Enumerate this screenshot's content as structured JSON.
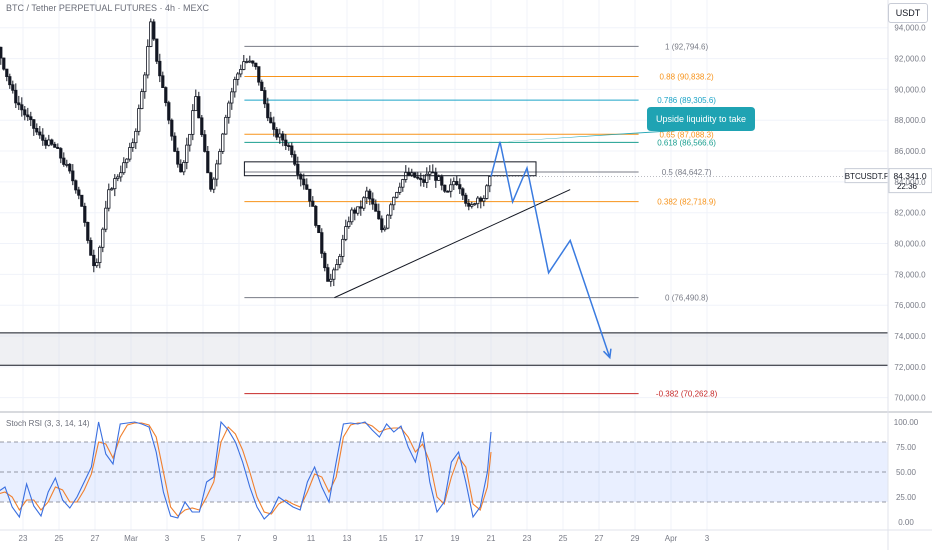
{
  "header": {
    "symbol_title": "BTC / Tether PERPETUAL FUTURES · 4h · MEXC",
    "currency_badge": "USDT"
  },
  "price_label": {
    "symbol": "BTCUSDT.P",
    "price": "84,341.0",
    "countdown": "22:36"
  },
  "annotation": {
    "text": "Upside liquidity to take"
  },
  "fib_levels": [
    {
      "ratio": 1,
      "label": "1 (92,794.6)",
      "price": 92794.6,
      "color": "#787b86"
    },
    {
      "ratio": 0.88,
      "label": "0.88 (90,838.2)",
      "price": 90838.2,
      "color": "#f7931a"
    },
    {
      "ratio": 0.786,
      "label": "0.786 (89,305.6)",
      "price": 89305.6,
      "color": "#1ba3c6"
    },
    {
      "ratio": 0.65,
      "label": "0.65 (87,088.3)",
      "price": 87088.3,
      "color": "#f7931a"
    },
    {
      "ratio": 0.618,
      "label": "0.618 (86,566.6)",
      "price": 86566.6,
      "color": "#1a9e8f"
    },
    {
      "ratio": 0.5,
      "label": "0.5 (84,642.7)",
      "price": 84642.7,
      "color": "#787b86"
    },
    {
      "ratio": 0.382,
      "label": "0.382 (82,718.9)",
      "price": 82718.9,
      "color": "#f7931a"
    },
    {
      "ratio": 0,
      "label": "0 (76,490.8)",
      "price": 76490.8,
      "color": "#787b86"
    },
    {
      "ratio": -0.382,
      "label": "-0.382 (70,262.8)",
      "price": 70262.8,
      "color": "#c62828"
    }
  ],
  "colors": {
    "up": "#131722",
    "down": "#131722",
    "arrow": "#3a7be0",
    "stoch_k": "#3a6fe0",
    "stoch_d": "#f07f2d"
  },
  "chart_data": {
    "type": "candlestick",
    "price_axis": {
      "ylim": [
        69200,
        95800
      ],
      "ticks": [
        70000,
        72000,
        74000,
        76000,
        78000,
        80000,
        82000,
        84000,
        86000,
        88000,
        90000,
        92000,
        94000
      ],
      "tick_labels": [
        "70,000.0",
        "72,000.0",
        "74,000.0",
        "76,000.0",
        "78,000.0",
        "80,000.0",
        "82,000.0",
        "84,000.0",
        "86,000.0",
        "88,000.0",
        "90,000.0",
        "92,000.0",
        "94,000.0"
      ]
    },
    "time_axis": {
      "labels": [
        "15",
        "17",
        "19",
        "21",
        "23",
        "25",
        "27",
        "Mar",
        "3",
        "5",
        "7",
        "9",
        "11",
        "13",
        "15",
        "17",
        "19",
        "21",
        "23",
        "25",
        "27",
        "29",
        "Apr",
        "3"
      ],
      "positions": [
        -8,
        -6,
        -4,
        -2,
        0,
        2,
        4,
        6,
        8,
        10,
        12,
        14,
        16,
        18,
        20,
        22,
        24,
        26,
        28,
        30,
        32,
        34,
        36,
        38
      ]
    },
    "price_path": [
      [
        -9.4,
        95200
      ],
      [
        -8.5,
        96200
      ],
      [
        -7.7,
        95600
      ],
      [
        -7,
        94200
      ],
      [
        -6.3,
        94500
      ],
      [
        -5.3,
        96000
      ],
      [
        -4.5,
        95200
      ],
      [
        -3.6,
        96200
      ],
      [
        -2.7,
        95700
      ],
      [
        -2,
        94500
      ],
      [
        -1.2,
        92000
      ],
      [
        -0.5,
        89500
      ],
      [
        0.2,
        88200
      ],
      [
        1,
        86800
      ],
      [
        1.8,
        86200
      ],
      [
        2.5,
        84800
      ],
      [
        3.2,
        83000
      ],
      [
        3.6,
        80000
      ],
      [
        4,
        78500
      ],
      [
        4.3,
        80000
      ],
      [
        4.8,
        83500
      ],
      [
        5.3,
        84500
      ],
      [
        5.8,
        85500
      ],
      [
        6.2,
        87000
      ],
      [
        6.7,
        90500
      ],
      [
        7.1,
        94200
      ],
      [
        7.5,
        91500
      ],
      [
        8,
        88800
      ],
      [
        8.4,
        86000
      ],
      [
        8.8,
        84800
      ],
      [
        9.2,
        86800
      ],
      [
        9.6,
        89500
      ],
      [
        10,
        86500
      ],
      [
        10.4,
        83500
      ],
      [
        10.8,
        85300
      ],
      [
        11.3,
        88600
      ],
      [
        11.8,
        90700
      ],
      [
        12.3,
        91900
      ],
      [
        12.9,
        91500
      ],
      [
        13.4,
        89200
      ],
      [
        13.9,
        87200
      ],
      [
        14.4,
        86800
      ],
      [
        14.9,
        86100
      ],
      [
        15.3,
        84600
      ],
      [
        15.8,
        83500
      ],
      [
        16.2,
        81800
      ],
      [
        16.6,
        79500
      ],
      [
        17,
        77400
      ],
      [
        17.4,
        78400
      ],
      [
        17.8,
        80300
      ],
      [
        18.2,
        82000
      ],
      [
        18.7,
        82200
      ],
      [
        19.1,
        83300
      ],
      [
        19.6,
        82000
      ],
      [
        20,
        80700
      ],
      [
        20.4,
        82600
      ],
      [
        20.9,
        83800
      ],
      [
        21.3,
        84500
      ],
      [
        21.8,
        84300
      ],
      [
        22.2,
        83900
      ],
      [
        22.6,
        84700
      ],
      [
        23.1,
        84100
      ],
      [
        23.5,
        83000
      ],
      [
        24,
        84200
      ],
      [
        24.4,
        83500
      ],
      [
        24.8,
        82100
      ],
      [
        25.2,
        83000
      ],
      [
        25.6,
        83000
      ],
      [
        26,
        84341
      ]
    ],
    "projection": {
      "series": "arrow",
      "points": [
        [
          26,
          84341
        ],
        [
          26.5,
          86600
        ],
        [
          27.2,
          82700
        ],
        [
          28,
          84900
        ],
        [
          29.2,
          78100
        ],
        [
          30.4,
          80200
        ],
        [
          32.6,
          72600
        ]
      ]
    },
    "trendline": {
      "from": [
        17.3,
        76490.8
      ],
      "to": [
        30.4,
        83500
      ]
    },
    "resistance_box": {
      "x": [
        12.3,
        28.5
      ],
      "y": [
        84400,
        85300
      ]
    },
    "range_zone": {
      "y": [
        72100,
        74200
      ]
    },
    "fib_x_range": [
      12.3,
      34.2
    ],
    "stoch": {
      "name": "Stoch RSI (3, 3, 14, 14)",
      "ylim": [
        -8,
        110
      ],
      "ticks": [
        0,
        25,
        50,
        75,
        100
      ],
      "tick_labels": [
        "0.00",
        "25.00",
        "50.00",
        "75.00",
        "100.00"
      ],
      "band": [
        20,
        80
      ],
      "k": [
        [
          -9.4,
          80
        ],
        [
          -9.0,
          88
        ],
        [
          -8.5,
          75
        ],
        [
          -8.0,
          88
        ],
        [
          -7.6,
          70
        ],
        [
          -7.2,
          20
        ],
        [
          -6.8,
          4
        ],
        [
          -6.4,
          12
        ],
        [
          -6.0,
          35
        ],
        [
          -5.6,
          30
        ],
        [
          -5.2,
          45
        ],
        [
          -4.8,
          40
        ],
        [
          -4.4,
          95
        ],
        [
          -4.0,
          98
        ],
        [
          -3.5,
          99
        ],
        [
          -3.0,
          97
        ],
        [
          -2.6,
          95
        ],
        [
          -2.2,
          60
        ],
        [
          -1.8,
          22
        ],
        [
          -1.4,
          30
        ],
        [
          -1.0,
          35
        ],
        [
          -0.6,
          15
        ],
        [
          -0.2,
          5
        ],
        [
          0.2,
          38
        ],
        [
          0.6,
          16
        ],
        [
          1.0,
          6
        ],
        [
          1.4,
          30
        ],
        [
          1.8,
          44
        ],
        [
          2.2,
          22
        ],
        [
          2.6,
          14
        ],
        [
          3.0,
          25
        ],
        [
          3.4,
          40
        ],
        [
          3.8,
          55
        ],
        [
          4.2,
          100
        ],
        [
          4.6,
          68
        ],
        [
          5.0,
          58
        ],
        [
          5.4,
          98
        ],
        [
          5.8,
          99
        ],
        [
          6.2,
          100
        ],
        [
          6.6,
          98
        ],
        [
          7.0,
          95
        ],
        [
          7.4,
          70
        ],
        [
          7.8,
          30
        ],
        [
          8.2,
          6
        ],
        [
          8.6,
          4
        ],
        [
          9.0,
          20
        ],
        [
          9.4,
          10
        ],
        [
          9.8,
          10
        ],
        [
          10.2,
          40
        ],
        [
          10.6,
          45
        ],
        [
          11.0,
          100
        ],
        [
          11.4,
          92
        ],
        [
          11.8,
          80
        ],
        [
          12.2,
          60
        ],
        [
          12.6,
          35
        ],
        [
          13.0,
          15
        ],
        [
          13.4,
          3
        ],
        [
          13.8,
          10
        ],
        [
          14.2,
          25
        ],
        [
          14.6,
          20
        ],
        [
          15.0,
          15
        ],
        [
          15.4,
          12
        ],
        [
          15.8,
          40
        ],
        [
          16.2,
          55
        ],
        [
          16.6,
          35
        ],
        [
          17.0,
          20
        ],
        [
          17.4,
          60
        ],
        [
          17.8,
          98
        ],
        [
          18.2,
          99
        ],
        [
          18.6,
          98
        ],
        [
          19.0,
          100
        ],
        [
          19.4,
          92
        ],
        [
          19.8,
          85
        ],
        [
          20.2,
          98
        ],
        [
          20.6,
          90
        ],
        [
          21.0,
          96
        ],
        [
          21.4,
          75
        ],
        [
          21.8,
          60
        ],
        [
          22.2,
          90
        ],
        [
          22.6,
          40
        ],
        [
          23.0,
          10
        ],
        [
          23.4,
          20
        ],
        [
          23.8,
          60
        ],
        [
          24.2,
          70
        ],
        [
          24.6,
          40
        ],
        [
          25.0,
          5
        ],
        [
          25.4,
          15
        ],
        [
          25.8,
          50
        ],
        [
          26.0,
          90
        ]
      ],
      "d": [
        [
          -9.4,
          78
        ],
        [
          -9.0,
          82
        ],
        [
          -8.5,
          80
        ],
        [
          -8.0,
          82
        ],
        [
          -7.6,
          75
        ],
        [
          -7.2,
          40
        ],
        [
          -6.8,
          12
        ],
        [
          -6.4,
          10
        ],
        [
          -6.0,
          28
        ],
        [
          -5.6,
          35
        ],
        [
          -5.2,
          40
        ],
        [
          -4.8,
          42
        ],
        [
          -4.4,
          75
        ],
        [
          -4.0,
          95
        ],
        [
          -3.5,
          98
        ],
        [
          -3.0,
          98
        ],
        [
          -2.6,
          96
        ],
        [
          -2.2,
          80
        ],
        [
          -1.8,
          40
        ],
        [
          -1.4,
          28
        ],
        [
          -1.0,
          30
        ],
        [
          -0.6,
          25
        ],
        [
          -0.2,
          12
        ],
        [
          0.2,
          22
        ],
        [
          0.6,
          22
        ],
        [
          1.0,
          12
        ],
        [
          1.4,
          20
        ],
        [
          1.8,
          35
        ],
        [
          2.2,
          32
        ],
        [
          2.6,
          20
        ],
        [
          3.0,
          20
        ],
        [
          3.4,
          32
        ],
        [
          3.8,
          48
        ],
        [
          4.2,
          80
        ],
        [
          4.6,
          78
        ],
        [
          5.0,
          64
        ],
        [
          5.4,
          85
        ],
        [
          5.8,
          97
        ],
        [
          6.2,
          99
        ],
        [
          6.6,
          99
        ],
        [
          7.0,
          97
        ],
        [
          7.4,
          85
        ],
        [
          7.8,
          50
        ],
        [
          8.2,
          15
        ],
        [
          8.6,
          6
        ],
        [
          9.0,
          12
        ],
        [
          9.4,
          14
        ],
        [
          9.8,
          12
        ],
        [
          10.2,
          25
        ],
        [
          10.6,
          40
        ],
        [
          11.0,
          80
        ],
        [
          11.4,
          95
        ],
        [
          11.8,
          88
        ],
        [
          12.2,
          72
        ],
        [
          12.6,
          50
        ],
        [
          13.0,
          25
        ],
        [
          13.4,
          10
        ],
        [
          13.8,
          8
        ],
        [
          14.2,
          18
        ],
        [
          14.6,
          22
        ],
        [
          15.0,
          18
        ],
        [
          15.4,
          15
        ],
        [
          15.8,
          30
        ],
        [
          16.2,
          48
        ],
        [
          16.6,
          45
        ],
        [
          17.0,
          30
        ],
        [
          17.4,
          45
        ],
        [
          17.8,
          85
        ],
        [
          18.2,
          97
        ],
        [
          18.6,
          99
        ],
        [
          19.0,
          99
        ],
        [
          19.4,
          96
        ],
        [
          19.8,
          90
        ],
        [
          20.2,
          93
        ],
        [
          20.6,
          94
        ],
        [
          21.0,
          94
        ],
        [
          21.4,
          85
        ],
        [
          21.8,
          70
        ],
        [
          22.2,
          78
        ],
        [
          22.6,
          60
        ],
        [
          23.0,
          25
        ],
        [
          23.4,
          18
        ],
        [
          23.8,
          45
        ],
        [
          24.2,
          65
        ],
        [
          24.6,
          55
        ],
        [
          25.0,
          18
        ],
        [
          25.4,
          12
        ],
        [
          25.8,
          35
        ],
        [
          26.0,
          70
        ]
      ]
    }
  }
}
